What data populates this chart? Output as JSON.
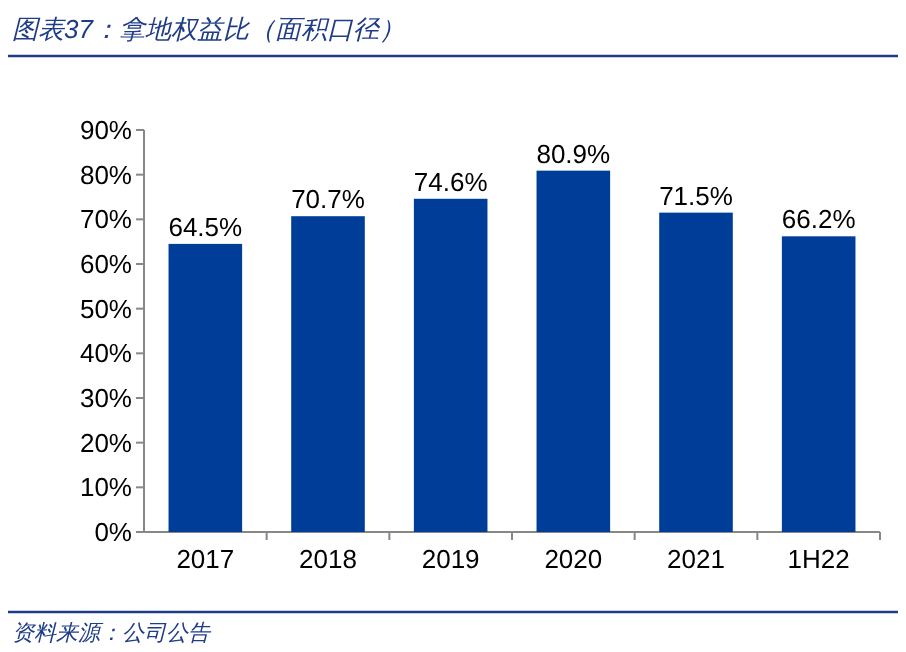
{
  "chart_data": {
    "type": "bar",
    "title": "图表37：拿地权益比（面积口径）",
    "categories": [
      "2017",
      "2018",
      "2019",
      "2020",
      "2021",
      "1H22"
    ],
    "values": [
      64.5,
      70.7,
      74.6,
      80.9,
      71.5,
      66.2
    ],
    "color": "#003d99",
    "ylim": [
      0,
      90
    ],
    "yticks": [
      {
        "value": 0,
        "label": "0%"
      },
      {
        "value": 10,
        "label": "10%"
      },
      {
        "value": 20,
        "label": "20%"
      },
      {
        "value": 30,
        "label": "30%"
      },
      {
        "value": 40,
        "label": "40%"
      },
      {
        "value": 50,
        "label": "50%"
      },
      {
        "value": 60,
        "label": "60%"
      },
      {
        "value": 70,
        "label": "70%"
      },
      {
        "value": 80,
        "label": "80%"
      },
      {
        "value": 90,
        "label": "90%"
      }
    ],
    "value_labels": [
      "64.5%",
      "70.7%",
      "74.6%",
      "80.9%",
      "71.5%",
      "66.2%"
    ],
    "annotations": [
      "资料来源：公司公告"
    ]
  }
}
